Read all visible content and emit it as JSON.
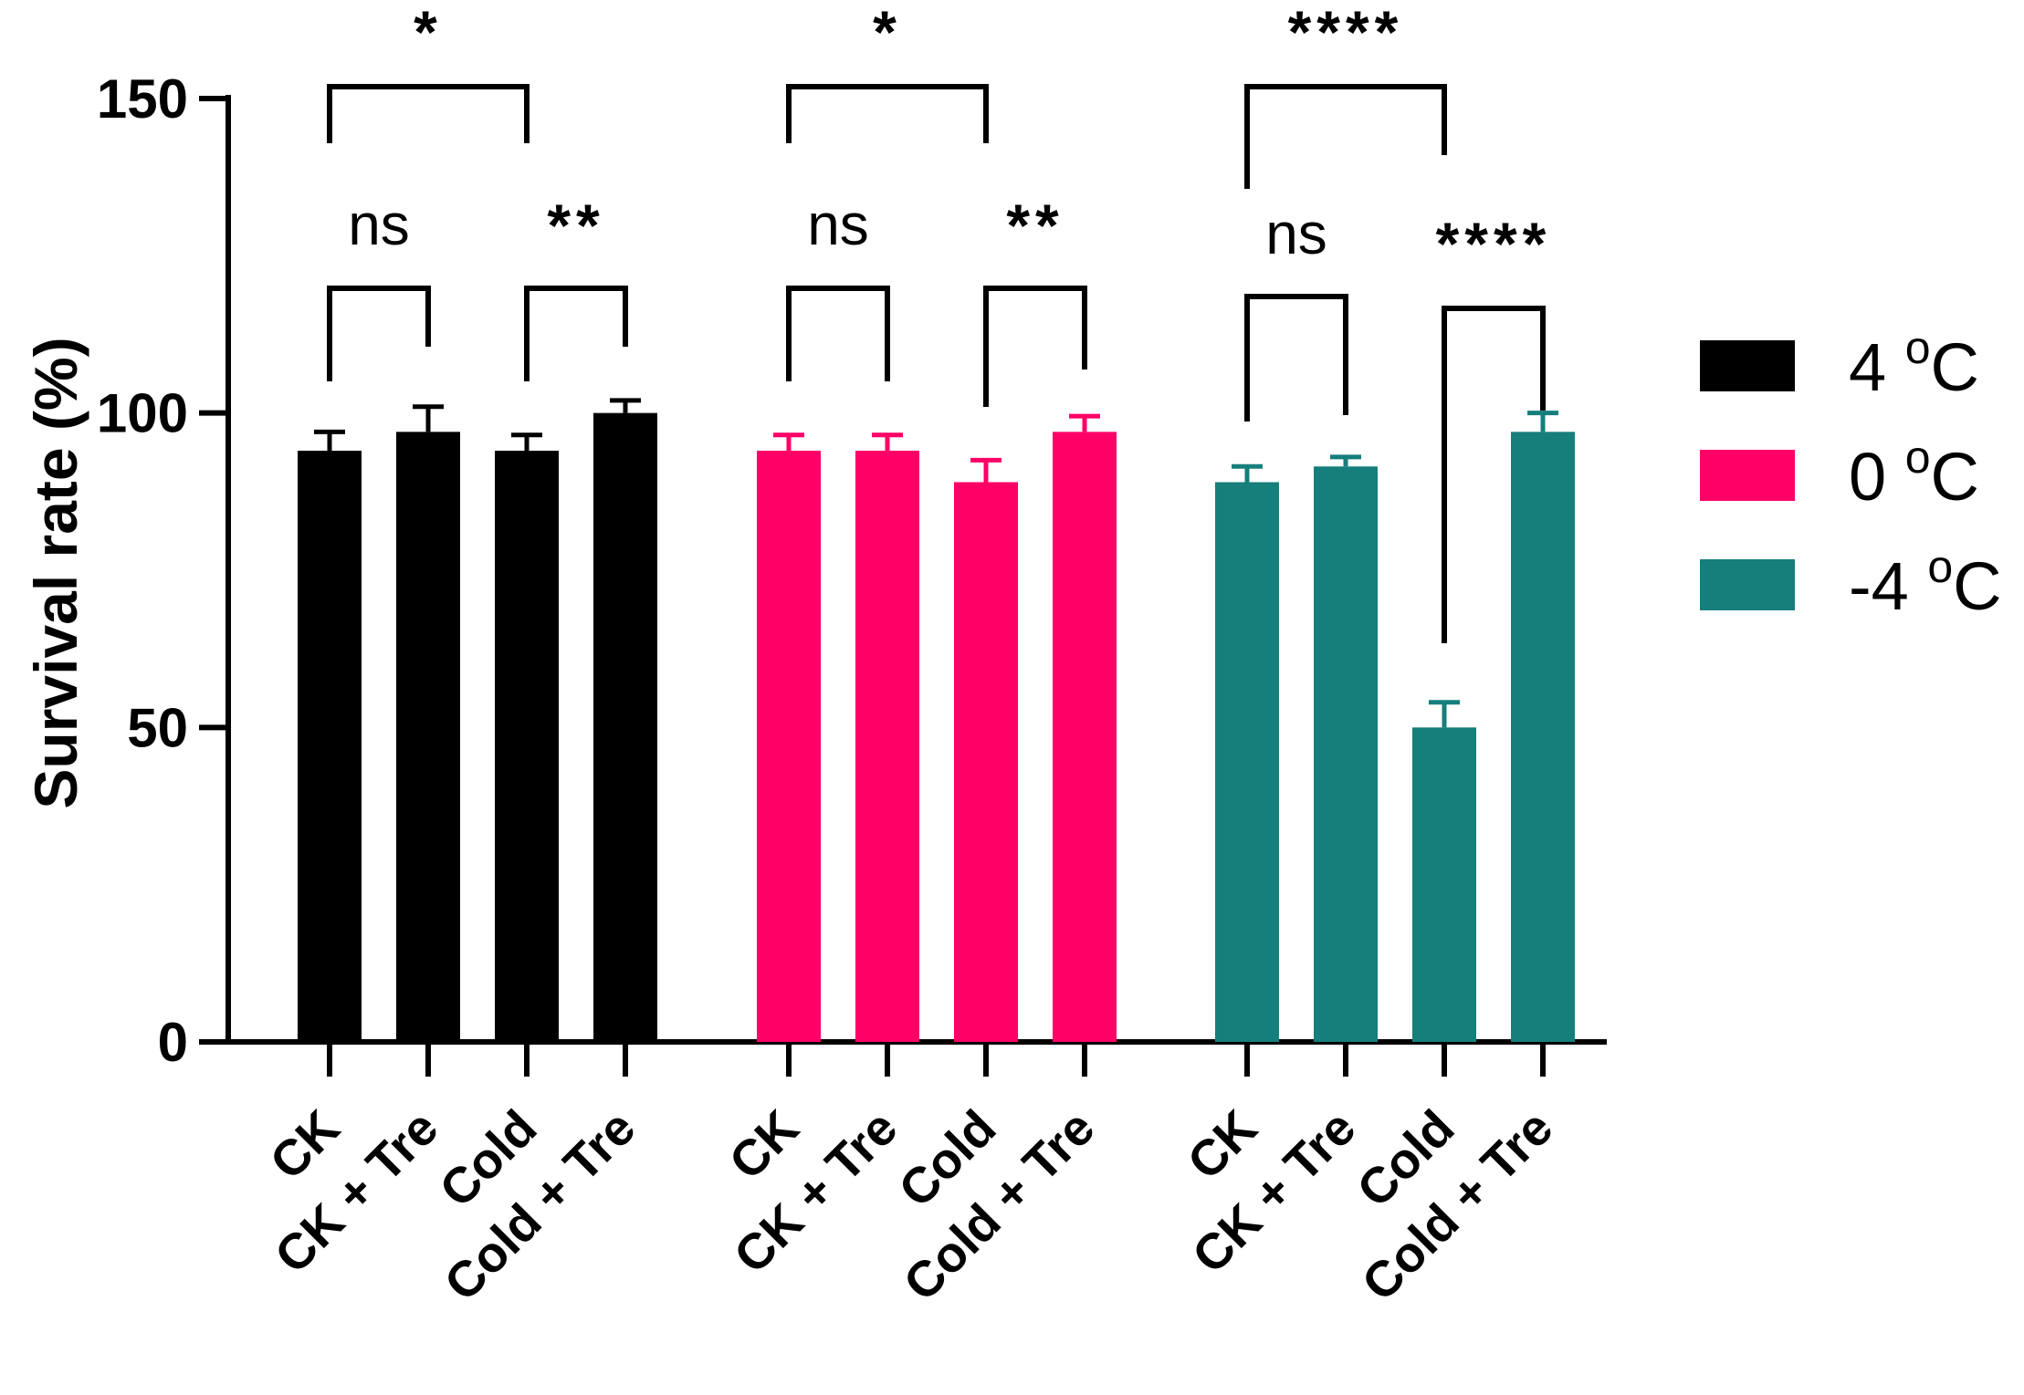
{
  "chart_data": {
    "type": "bar",
    "ylabel": "Survival rate (%)",
    "xlabel": "",
    "ylim": [
      0,
      150
    ],
    "yticks": [
      0,
      50,
      100,
      150
    ],
    "grid": false,
    "legend_position": "right",
    "categories": [
      "CK",
      "CK + Tre",
      "Cold",
      "Cold + Tre"
    ],
    "series": [
      {
        "name": "4 °C",
        "legend_main": "4 ",
        "legend_sup": "o",
        "legend_end": "C",
        "color": "#000000",
        "values": [
          94,
          97,
          94,
          100
        ],
        "errors": [
          3,
          4,
          2.5,
          2
        ]
      },
      {
        "name": "0 °C",
        "legend_main": "0 ",
        "legend_sup": "o",
        "legend_end": "C",
        "color": "#ff0066",
        "values": [
          94,
          94,
          89,
          97
        ],
        "errors": [
          2.5,
          2.5,
          3.5,
          2.5
        ]
      },
      {
        "name": "-4 °C",
        "legend_main": "-4 ",
        "legend_sup": "o",
        "legend_end": "C",
        "color": "#167e7b",
        "values": [
          89,
          91.5,
          50,
          97
        ],
        "errors": [
          2.5,
          1.5,
          4,
          3
        ]
      }
    ],
    "significance": [
      {
        "group": 0,
        "from": 0,
        "to": 2,
        "label": "*"
      },
      {
        "group": 0,
        "from": 0,
        "to": 1,
        "label": "ns"
      },
      {
        "group": 0,
        "from": 2,
        "to": 3,
        "label": "**"
      },
      {
        "group": 1,
        "from": 0,
        "to": 2,
        "label": "*"
      },
      {
        "group": 1,
        "from": 0,
        "to": 1,
        "label": "ns"
      },
      {
        "group": 1,
        "from": 2,
        "to": 3,
        "label": "**"
      },
      {
        "group": 2,
        "from": 0,
        "to": 2,
        "label": "****"
      },
      {
        "group": 2,
        "from": 0,
        "to": 1,
        "label": "ns"
      },
      {
        "group": 2,
        "from": 2,
        "to": 3,
        "label": "****"
      }
    ]
  }
}
